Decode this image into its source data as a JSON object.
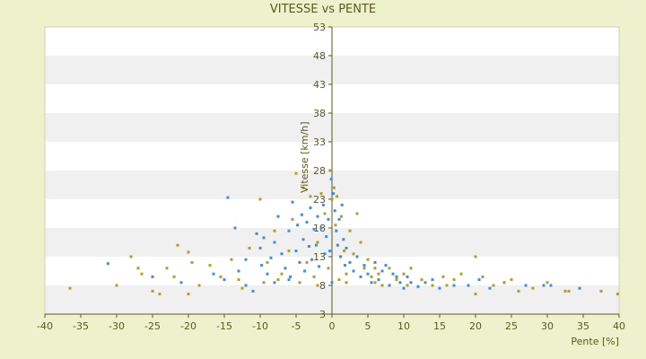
{
  "chart_data": {
    "type": "scatter",
    "title": "VITESSE vs PENTE",
    "xlabel": "Pente [%]",
    "ylabel": "Vitesse [km/h]",
    "xlim": [
      -40,
      40
    ],
    "ylim": [
      3,
      53
    ],
    "x_ticks": [
      -40,
      -35,
      -30,
      -25,
      -20,
      -15,
      -10,
      -5,
      0,
      5,
      10,
      15,
      20,
      25,
      30,
      35,
      40
    ],
    "y_ticks": [
      3,
      8,
      13,
      18,
      23,
      28,
      33,
      38,
      43,
      48,
      53
    ],
    "y_tick_labels": [
      "3",
      "8",
      "13",
      "18",
      "23",
      "28",
      "33",
      "38",
      "43",
      "48",
      "53"
    ],
    "grid": "horizontal alternating bands",
    "legend": "none",
    "colors": {
      "background": "#eef2cc",
      "plot_band_light": "#ffffff",
      "plot_band_dark": "#f0f0f0",
      "axis": "#5a5a1e",
      "series_a": "#3d8ee0",
      "series_b": "#b0a020"
    },
    "series": [
      {
        "color": "#3d8ee0",
        "points": [
          [
            -31.2,
            11.8
          ],
          [
            -14.5,
            23.3
          ],
          [
            -13.5,
            18.0
          ],
          [
            -12.0,
            12.5
          ],
          [
            -11.0,
            7.0
          ],
          [
            -10.5,
            17.0
          ],
          [
            -10.0,
            14.5
          ],
          [
            -9.8,
            11.5
          ],
          [
            -9.5,
            16.3
          ],
          [
            -9.0,
            10.0
          ],
          [
            -8.5,
            12.8
          ],
          [
            -8.0,
            15.5
          ],
          [
            -7.5,
            20.0
          ],
          [
            -7.0,
            13.5
          ],
          [
            -6.5,
            11.0
          ],
          [
            -6.0,
            17.5
          ],
          [
            -5.8,
            9.5
          ],
          [
            -5.5,
            22.5
          ],
          [
            -5.0,
            14.0
          ],
          [
            -4.8,
            18.5
          ],
          [
            -4.5,
            12.0
          ],
          [
            -4.2,
            20.3
          ],
          [
            -4.0,
            16.0
          ],
          [
            -3.8,
            10.5
          ],
          [
            -3.5,
            19.0
          ],
          [
            -3.2,
            14.8
          ],
          [
            -3.0,
            21.5
          ],
          [
            -2.8,
            12.5
          ],
          [
            -2.5,
            17.8
          ],
          [
            -2.2,
            15.0
          ],
          [
            -2.0,
            20.0
          ],
          [
            -1.8,
            11.3
          ],
          [
            -1.5,
            18.0
          ],
          [
            -1.2,
            22.0
          ],
          [
            -1.0,
            13.5
          ],
          [
            -0.8,
            16.5
          ],
          [
            -0.5,
            19.5
          ],
          [
            -0.3,
            14.0
          ],
          [
            -0.1,
            26.5
          ],
          [
            0.0,
            8.5
          ],
          [
            0.2,
            24.0
          ],
          [
            0.4,
            21.0
          ],
          [
            0.6,
            17.5
          ],
          [
            0.8,
            15.0
          ],
          [
            1.0,
            19.5
          ],
          [
            1.2,
            13.0
          ],
          [
            1.4,
            22.0
          ],
          [
            1.6,
            16.0
          ],
          [
            1.8,
            11.5
          ],
          [
            2.0,
            14.5
          ],
          [
            2.5,
            12.0
          ],
          [
            3.0,
            10.5
          ],
          [
            3.5,
            13.0
          ],
          [
            4.0,
            9.5
          ],
          [
            4.5,
            11.5
          ],
          [
            5.0,
            10.0
          ],
          [
            5.5,
            8.5
          ],
          [
            6.0,
            12.0
          ],
          [
            6.5,
            9.0
          ],
          [
            7.0,
            10.5
          ],
          [
            7.5,
            11.5
          ],
          [
            8.0,
            8.0
          ],
          [
            8.5,
            10.0
          ],
          [
            9.0,
            9.5
          ],
          [
            9.5,
            8.5
          ],
          [
            10.0,
            7.5
          ],
          [
            10.5,
            9.5
          ],
          [
            11.0,
            8.5
          ],
          [
            12.0,
            7.8
          ],
          [
            13.0,
            8.5
          ],
          [
            14.0,
            9.0
          ],
          [
            15.0,
            7.5
          ],
          [
            17.0,
            8.0
          ],
          [
            19.0,
            8.0
          ],
          [
            20.5,
            9.0
          ],
          [
            22.0,
            7.5
          ],
          [
            24.0,
            8.5
          ],
          [
            27.0,
            8.0
          ],
          [
            29.5,
            8.0
          ],
          [
            30.5,
            8.0
          ],
          [
            34.5,
            7.5
          ],
          [
            -25.0,
            9.5
          ],
          [
            -21.0,
            8.5
          ],
          [
            -16.5,
            10.0
          ],
          [
            -15.0,
            9.0
          ],
          [
            -13.0,
            10.5
          ],
          [
            -12.0,
            8.0
          ],
          [
            -8.0,
            8.5
          ],
          [
            -6.0,
            9.0
          ]
        ]
      },
      {
        "color": "#b0a020",
        "points": [
          [
            -36.5,
            7.5
          ],
          [
            -30.0,
            8.0
          ],
          [
            -28.0,
            13.0
          ],
          [
            -27.0,
            11.0
          ],
          [
            -26.5,
            10.0
          ],
          [
            -25.0,
            7.0
          ],
          [
            -24.0,
            6.5
          ],
          [
            -23.0,
            11.0
          ],
          [
            -22.0,
            9.5
          ],
          [
            -21.5,
            15.0
          ],
          [
            -20.0,
            13.8
          ],
          [
            -20.0,
            6.5
          ],
          [
            -19.5,
            12.0
          ],
          [
            -18.5,
            8.0
          ],
          [
            -17.0,
            11.5
          ],
          [
            -15.5,
            9.5
          ],
          [
            -14.0,
            12.5
          ],
          [
            -13.0,
            9.0
          ],
          [
            -11.5,
            14.5
          ],
          [
            -10.0,
            23.0
          ],
          [
            -9.5,
            8.5
          ],
          [
            -9.0,
            12.0
          ],
          [
            -8.0,
            17.5
          ],
          [
            -7.0,
            10.0
          ],
          [
            -6.0,
            14.0
          ],
          [
            -5.5,
            19.5
          ],
          [
            -5.0,
            27.5
          ],
          [
            -4.5,
            8.5
          ],
          [
            -4.0,
            25.0
          ],
          [
            -3.5,
            12.0
          ],
          [
            -3.0,
            23.5
          ],
          [
            -2.5,
            9.5
          ],
          [
            -2.0,
            15.5
          ],
          [
            -1.5,
            24.0
          ],
          [
            -1.0,
            20.5
          ],
          [
            -0.5,
            11.0
          ],
          [
            -0.2,
            28.0
          ],
          [
            0.0,
            23.0
          ],
          [
            0.3,
            25.0
          ],
          [
            0.5,
            18.5
          ],
          [
            0.7,
            23.5
          ],
          [
            1.0,
            9.0
          ],
          [
            1.3,
            20.0
          ],
          [
            1.7,
            14.0
          ],
          [
            2.0,
            10.0
          ],
          [
            2.5,
            17.5
          ],
          [
            3.0,
            13.5
          ],
          [
            3.5,
            20.5
          ],
          [
            4.0,
            15.5
          ],
          [
            4.5,
            11.0
          ],
          [
            5.0,
            12.5
          ],
          [
            5.5,
            9.5
          ],
          [
            6.0,
            11.0
          ],
          [
            6.5,
            10.0
          ],
          [
            7.0,
            8.0
          ],
          [
            8.0,
            11.0
          ],
          [
            9.0,
            9.0
          ],
          [
            10.0,
            10.0
          ],
          [
            11.0,
            11.0
          ],
          [
            12.5,
            9.0
          ],
          [
            14.0,
            8.0
          ],
          [
            15.5,
            9.5
          ],
          [
            17.0,
            9.0
          ],
          [
            18.0,
            10.0
          ],
          [
            20.0,
            6.5
          ],
          [
            20.0,
            13.0
          ],
          [
            21.0,
            9.5
          ],
          [
            22.5,
            8.0
          ],
          [
            24.0,
            8.5
          ],
          [
            25.0,
            9.0
          ],
          [
            26.0,
            7.0
          ],
          [
            28.0,
            7.5
          ],
          [
            30.0,
            8.5
          ],
          [
            32.5,
            7.0
          ],
          [
            33.0,
            7.0
          ],
          [
            37.5,
            7.0
          ],
          [
            39.8,
            6.5
          ],
          [
            -12.5,
            7.5
          ],
          [
            -7.5,
            9.0
          ],
          [
            -2.0,
            8.0
          ],
          [
            2.0,
            8.5
          ],
          [
            6.0,
            8.5
          ],
          [
            10.5,
            8.0
          ],
          [
            16.0,
            8.0
          ]
        ]
      }
    ]
  }
}
